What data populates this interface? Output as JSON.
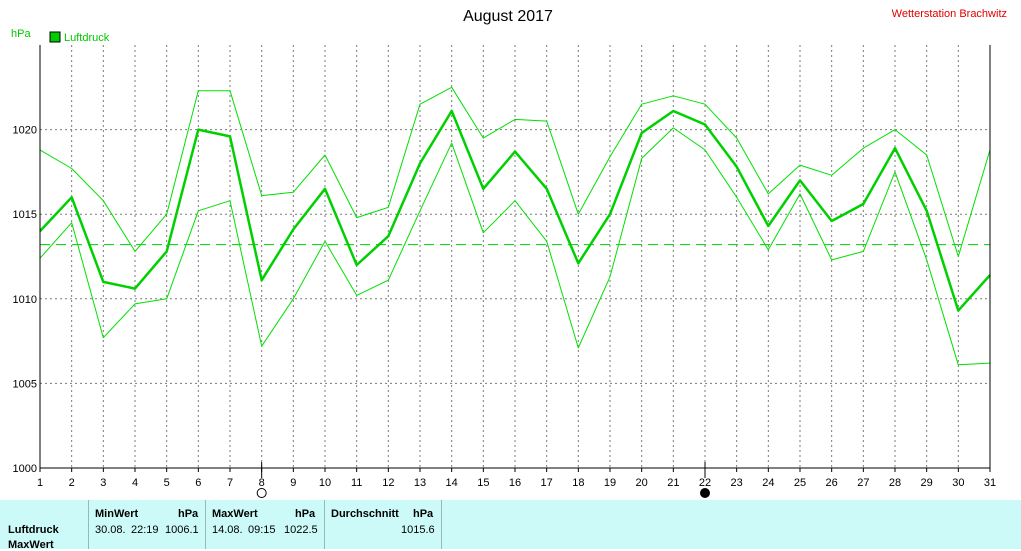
{
  "chart_data": {
    "type": "line",
    "title": "August 2017",
    "station": "Wetterstation Brachwitz",
    "ylabel": "hPa",
    "legend": [
      {
        "name": "Luftdruck",
        "color": "#00cc00"
      }
    ],
    "ylim": [
      1000,
      1025
    ],
    "yticks": [
      1000,
      1005,
      1010,
      1015,
      1020
    ],
    "x": [
      1,
      2,
      3,
      4,
      5,
      6,
      7,
      8,
      9,
      10,
      11,
      12,
      13,
      14,
      15,
      16,
      17,
      18,
      19,
      20,
      21,
      22,
      23,
      24,
      25,
      26,
      27,
      28,
      29,
      30,
      31
    ],
    "xlim": [
      1,
      31
    ],
    "grid": true,
    "average_line": 1013.2,
    "moon_phases": [
      {
        "day": 8,
        "phase": "full"
      },
      {
        "day": 22,
        "phase": "new"
      }
    ],
    "series": [
      {
        "name": "Luftdruck",
        "role": "mean",
        "color": "#00d000",
        "values": [
          1014.0,
          1016.0,
          1011.0,
          1010.6,
          1012.8,
          1020.0,
          1019.6,
          1011.1,
          1014.1,
          1016.5,
          1012.0,
          1013.7,
          1018.0,
          1021.1,
          1016.5,
          1018.7,
          1016.5,
          1012.1,
          1015.0,
          1019.8,
          1021.1,
          1020.3,
          1017.8,
          1014.3,
          1017.0,
          1014.6,
          1015.6,
          1018.9,
          1015.2,
          1009.3,
          1011.4
        ]
      },
      {
        "role": "max",
        "color": "#00e000",
        "values": [
          1018.8,
          1017.7,
          1015.8,
          1012.8,
          1015.0,
          1022.3,
          1022.3,
          1016.1,
          1016.3,
          1018.5,
          1014.8,
          1015.4,
          1021.5,
          1022.5,
          1019.5,
          1020.6,
          1020.5,
          1015.0,
          1018.4,
          1021.5,
          1022.0,
          1021.5,
          1019.5,
          1016.2,
          1017.9,
          1017.3,
          1018.9,
          1020.0,
          1018.5,
          1012.5,
          1018.8
        ]
      },
      {
        "role": "min",
        "color": "#00e000",
        "values": [
          1012.4,
          1014.5,
          1007.7,
          1009.7,
          1010.0,
          1015.2,
          1015.8,
          1007.2,
          1010.0,
          1013.4,
          1010.2,
          1011.1,
          1015.2,
          1019.2,
          1013.9,
          1015.8,
          1013.4,
          1007.1,
          1011.3,
          1018.3,
          1020.1,
          1018.8,
          1016.0,
          1012.9,
          1016.2,
          1012.3,
          1012.8,
          1017.5,
          1012.3,
          1006.1,
          1006.2
        ]
      }
    ]
  },
  "stats": {
    "row_label": "Luftdruck",
    "row_label_2": "MaxWert",
    "min": {
      "header": "MinWert",
      "unit": "hPa",
      "date": "30.08.",
      "time": "22:19",
      "value": "1006.1"
    },
    "max": {
      "header": "MaxWert",
      "unit": "hPa",
      "date": "14.08.",
      "time": "09:15",
      "value": "1022.5"
    },
    "avg": {
      "header": "Durchschnitt",
      "unit": "hPa",
      "value": "1015.6"
    }
  }
}
